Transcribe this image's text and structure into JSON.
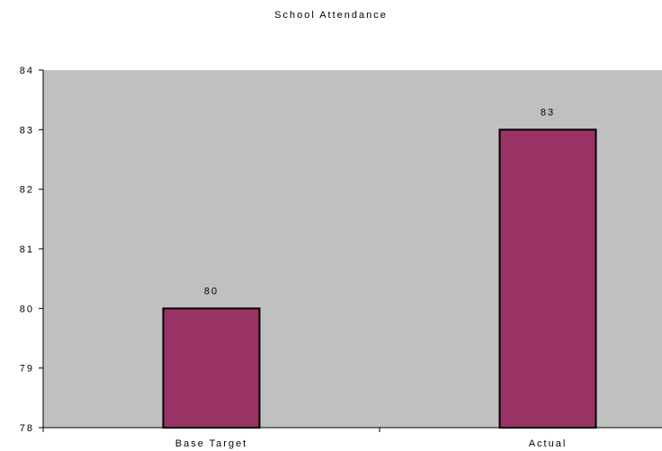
{
  "chart_data": {
    "type": "bar",
    "title": "School Attendance",
    "categories": [
      "Base Target",
      "Actual"
    ],
    "values": [
      80,
      83
    ],
    "data_labels": [
      "80",
      "83"
    ],
    "ylim": [
      78,
      84
    ],
    "yticks": [
      78,
      79,
      80,
      81,
      82,
      83,
      84
    ],
    "xlabel": "",
    "ylabel": "",
    "grid": false,
    "legend": "none",
    "colors": {
      "bar_fill": "#993366",
      "bar_stroke": "#000000",
      "plot_background": "#c0c0c0",
      "axis": "#000000"
    }
  }
}
